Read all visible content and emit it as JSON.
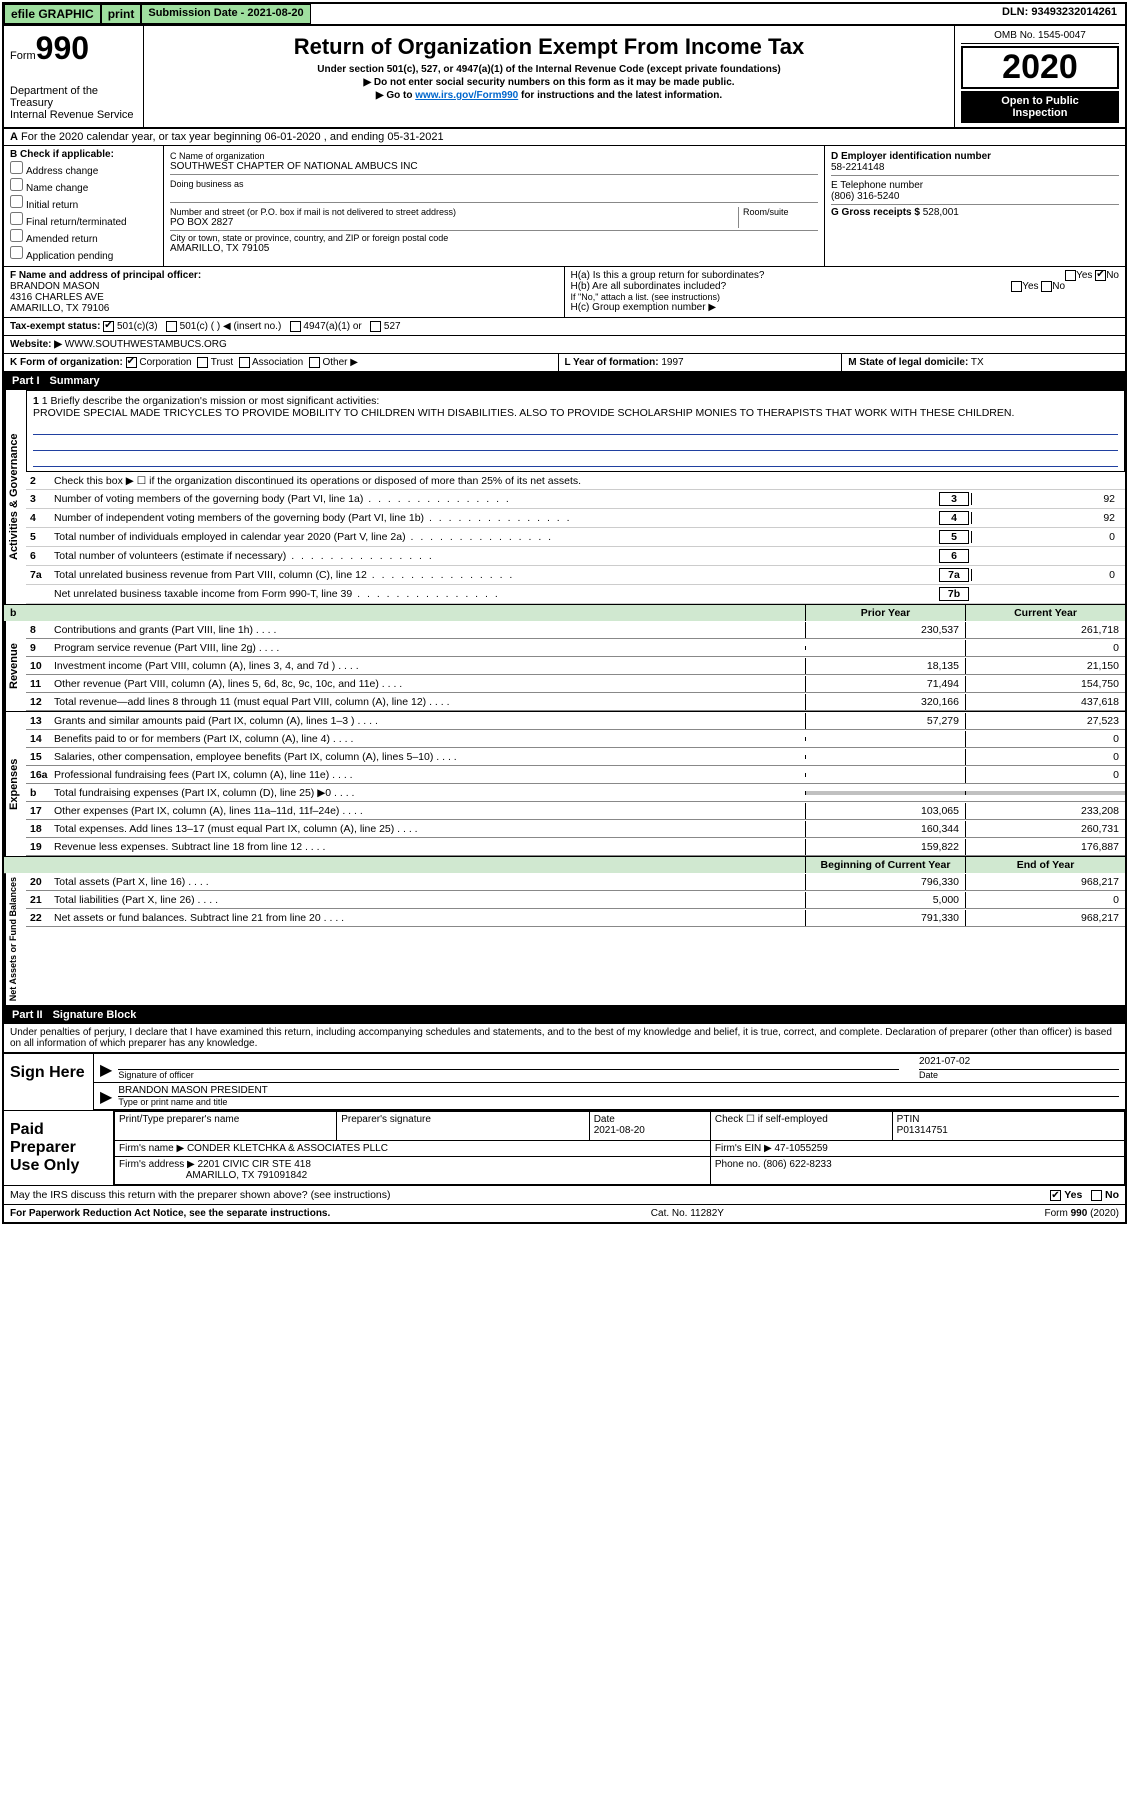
{
  "topbar": {
    "efile": "efile GRAPHIC",
    "print": "print",
    "sub_label": "Submission Date - 2021-08-20",
    "dln": "DLN: 93493232014261"
  },
  "header": {
    "form_word": "Form",
    "form_num": "990",
    "dept": "Department of the Treasury",
    "irs": "Internal Revenue Service",
    "title": "Return of Organization Exempt From Income Tax",
    "sub1": "Under section 501(c), 527, or 4947(a)(1) of the Internal Revenue Code (except private foundations)",
    "sub2": "▶ Do not enter social security numbers on this form as it may be made public.",
    "sub3_pre": "▶ Go to ",
    "sub3_link": "www.irs.gov/Form990",
    "sub3_post": " for instructions and the latest information.",
    "omb": "OMB No. 1545-0047",
    "year": "2020",
    "inspect1": "Open to Public",
    "inspect2": "Inspection"
  },
  "rowA": {
    "text_a": "A",
    "text": "For the 2020 calendar year, or tax year beginning 06-01-2020    , and ending 05-31-2021"
  },
  "B": {
    "label": "B Check if applicable:",
    "items": [
      "Address change",
      "Name change",
      "Initial return",
      "Final return/terminated",
      "Amended return",
      "Application pending"
    ]
  },
  "C": {
    "name_label": "C Name of organization",
    "name": "SOUTHWEST CHAPTER OF NATIONAL AMBUCS INC",
    "dba_label": "Doing business as",
    "addr_label": "Number and street (or P.O. box if mail is not delivered to street address)",
    "room_label": "Room/suite",
    "addr": "PO BOX 2827",
    "city_label": "City or town, state or province, country, and ZIP or foreign postal code",
    "city": "AMARILLO, TX  79105"
  },
  "D": {
    "label": "D Employer identification number",
    "val": "58-2214148"
  },
  "E": {
    "label": "E Telephone number",
    "val": "(806) 316-5240"
  },
  "G": {
    "label": "G Gross receipts $",
    "val": "528,001"
  },
  "F": {
    "label": "F  Name and address of principal officer:",
    "name": "BRANDON MASON",
    "addr1": "4316 CHARLES AVE",
    "addr2": "AMARILLO, TX  79106"
  },
  "H": {
    "a": "H(a)  Is this a group return for subordinates?",
    "b": "H(b)  Are all subordinates included?",
    "b_note": "If \"No,\" attach a list. (see instructions)",
    "c": "H(c)  Group exemption number ▶",
    "yes": "Yes",
    "no": "No"
  },
  "I": {
    "label": "Tax-exempt status:",
    "opts": [
      "501(c)(3)",
      "501(c) (  ) ◀ (insert no.)",
      "4947(a)(1) or",
      "527"
    ]
  },
  "J": {
    "label": "Website: ▶",
    "val": "WWW.SOUTHWESTAMBUCS.ORG"
  },
  "K": {
    "label": "K Form of organization:",
    "opts": [
      "Corporation",
      "Trust",
      "Association",
      "Other ▶"
    ]
  },
  "L": {
    "label": "L Year of formation:",
    "val": "1997"
  },
  "M": {
    "label": "M State of legal domicile:",
    "val": "TX"
  },
  "part1": {
    "num": "Part I",
    "title": "Summary"
  },
  "mission": {
    "q": "1 Briefly describe the organization's mission or most significant activities:",
    "text": "PROVIDE SPECIAL MADE TRICYCLES TO PROVIDE MOBILITY TO CHILDREN WITH DISABILITIES. ALSO TO PROVIDE SCHOLARSHIP MONIES TO THERAPISTS THAT WORK WITH THESE CHILDREN."
  },
  "gov_lines": {
    "l2": "Check this box ▶ ☐  if the organization discontinued its operations or disposed of more than 25% of its net assets.",
    "l3": {
      "num": "3",
      "desc": "Number of voting members of the governing body (Part VI, line 1a)",
      "box": "3",
      "val": "92"
    },
    "l4": {
      "num": "4",
      "desc": "Number of independent voting members of the governing body (Part VI, line 1b)",
      "box": "4",
      "val": "92"
    },
    "l5": {
      "num": "5",
      "desc": "Total number of individuals employed in calendar year 2020 (Part V, line 2a)",
      "box": "5",
      "val": "0"
    },
    "l6": {
      "num": "6",
      "desc": "Total number of volunteers (estimate if necessary)",
      "box": "6",
      "val": ""
    },
    "l7a": {
      "num": "7a",
      "desc": "Total unrelated business revenue from Part VIII, column (C), line 12",
      "box": "7a",
      "val": "0"
    },
    "l7b": {
      "num": "",
      "desc": "Net unrelated business taxable income from Form 990-T, line 39",
      "box": "7b",
      "val": ""
    }
  },
  "colhdr": {
    "b": "b",
    "prior": "Prior Year",
    "current": "Current Year"
  },
  "revenue": [
    {
      "num": "8",
      "desc": "Contributions and grants (Part VIII, line 1h)",
      "prior": "230,537",
      "curr": "261,718"
    },
    {
      "num": "9",
      "desc": "Program service revenue (Part VIII, line 2g)",
      "prior": "",
      "curr": "0"
    },
    {
      "num": "10",
      "desc": "Investment income (Part VIII, column (A), lines 3, 4, and 7d )",
      "prior": "18,135",
      "curr": "21,150"
    },
    {
      "num": "11",
      "desc": "Other revenue (Part VIII, column (A), lines 5, 6d, 8c, 9c, 10c, and 11e)",
      "prior": "71,494",
      "curr": "154,750"
    },
    {
      "num": "12",
      "desc": "Total revenue—add lines 8 through 11 (must equal Part VIII, column (A), line 12)",
      "prior": "320,166",
      "curr": "437,618"
    }
  ],
  "expenses": [
    {
      "num": "13",
      "desc": "Grants and similar amounts paid (Part IX, column (A), lines 1–3 )",
      "prior": "57,279",
      "curr": "27,523"
    },
    {
      "num": "14",
      "desc": "Benefits paid to or for members (Part IX, column (A), line 4)",
      "prior": "",
      "curr": "0"
    },
    {
      "num": "15",
      "desc": "Salaries, other compensation, employee benefits (Part IX, column (A), lines 5–10)",
      "prior": "",
      "curr": "0"
    },
    {
      "num": "16a",
      "desc": "Professional fundraising fees (Part IX, column (A), line 11e)",
      "prior": "",
      "curr": "0"
    },
    {
      "num": "b",
      "desc": "Total fundraising expenses (Part IX, column (D), line 25) ▶0",
      "prior": "__shade__",
      "curr": "__shade__"
    },
    {
      "num": "17",
      "desc": "Other expenses (Part IX, column (A), lines 11a–11d, 11f–24e)",
      "prior": "103,065",
      "curr": "233,208"
    },
    {
      "num": "18",
      "desc": "Total expenses. Add lines 13–17 (must equal Part IX, column (A), line 25)",
      "prior": "160,344",
      "curr": "260,731"
    },
    {
      "num": "19",
      "desc": "Revenue less expenses. Subtract line 18 from line 12",
      "prior": "159,822",
      "curr": "176,887"
    }
  ],
  "netcolhdr": {
    "prior": "Beginning of Current Year",
    "current": "End of Year"
  },
  "netassets": [
    {
      "num": "20",
      "desc": "Total assets (Part X, line 16)",
      "prior": "796,330",
      "curr": "968,217"
    },
    {
      "num": "21",
      "desc": "Total liabilities (Part X, line 26)",
      "prior": "5,000",
      "curr": "0"
    },
    {
      "num": "22",
      "desc": "Net assets or fund balances. Subtract line 21 from line 20",
      "prior": "791,330",
      "curr": "968,217"
    }
  ],
  "vlabels": {
    "gov": "Activities & Governance",
    "rev": "Revenue",
    "exp": "Expenses",
    "net": "Net Assets or Fund Balances"
  },
  "part2": {
    "num": "Part II",
    "title": "Signature Block"
  },
  "penalty": "Under penalties of perjury, I declare that I have examined this return, including accompanying schedules and statements, and to the best of my knowledge and belief, it is true, correct, and complete. Declaration of preparer (other than officer) is based on all information of which preparer has any knowledge.",
  "sign": {
    "label": "Sign Here",
    "sig_of_officer": "Signature of officer",
    "date_lbl": "Date",
    "date": "2021-07-02",
    "name": "BRANDON MASON PRESIDENT",
    "name_lbl": "Type or print name and title"
  },
  "prep": {
    "label": "Paid Preparer Use Only",
    "c_print": "Print/Type preparer's name",
    "c_sig": "Preparer's signature",
    "c_date": "Date",
    "date": "2021-08-20",
    "c_check": "Check ☐ if self-employed",
    "c_ptin": "PTIN",
    "ptin": "P01314751",
    "firm_name_lbl": "Firm's name    ▶",
    "firm_name": "CONDER KLETCHKA & ASSOCIATES PLLC",
    "firm_ein_lbl": "Firm's EIN ▶",
    "firm_ein": "47-1055259",
    "firm_addr_lbl": "Firm's address ▶",
    "firm_addr1": "2201 CIVIC CIR STE 418",
    "firm_addr2": "AMARILLO, TX  791091842",
    "phone_lbl": "Phone no.",
    "phone": "(806) 622-8233"
  },
  "discuss": {
    "q": "May the IRS discuss this return with the preparer shown above? (see instructions)",
    "yes": "Yes",
    "no": "No"
  },
  "footer": {
    "left": "For Paperwork Reduction Act Notice, see the separate instructions.",
    "mid": "Cat. No. 11282Y",
    "right": "Form 990 (2020)"
  },
  "colors": {
    "green": "#9fdf9f",
    "ruled_blue": "#2040a0"
  }
}
